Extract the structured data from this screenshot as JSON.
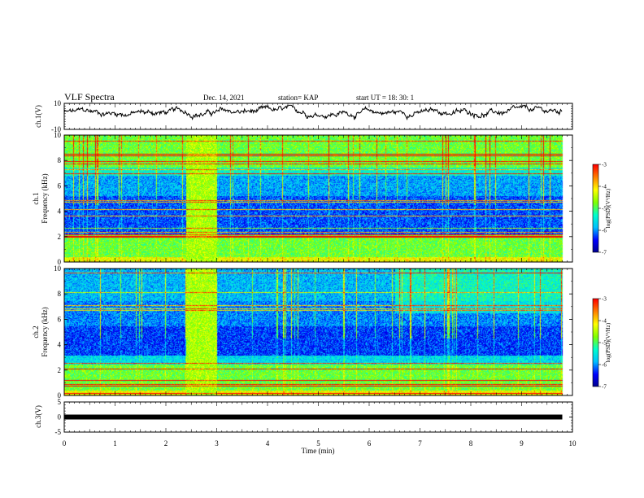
{
  "header": {
    "title": "VLF Spectra",
    "date": "Dec. 14, 2021",
    "station": "station= KAP",
    "start": "start  UT =   18: 30: 1"
  },
  "colors": {
    "trace": "#000000",
    "colormap": [
      "#00008b",
      "#0000ff",
      "#00bfff",
      "#00ffcc",
      "#7fff00",
      "#ffff00",
      "#ff8000",
      "#ff0000"
    ]
  },
  "chart_data": [
    {
      "type": "line",
      "name": "ch1-waveform",
      "ylabel": "ch.1(V)",
      "ylim": [
        -10,
        10
      ],
      "yticks": [
        "10",
        "-10"
      ],
      "x_range": [
        0,
        9.8
      ],
      "y_mean": 3,
      "y_spread": 4,
      "grid": false
    },
    {
      "type": "heatmap",
      "name": "ch1-spectrogram",
      "ylabel_line1": "ch.1",
      "ylabel_line2": "Frequency (kHz)",
      "ylim": [
        0,
        10
      ],
      "yticks": [
        "0",
        "2",
        "4",
        "6",
        "8",
        "10"
      ],
      "x_range": [
        0,
        9.8
      ],
      "burst_interval": [
        2.4,
        3.0
      ],
      "colorbar": {
        "label": "log(PSD)(V²/Hz)",
        "ticks": [
          "-3",
          "-4",
          "-5",
          "-6",
          "-7"
        ],
        "range": [
          -7,
          -3
        ]
      }
    },
    {
      "type": "heatmap",
      "name": "ch2-spectrogram",
      "ylabel_line1": "ch.2",
      "ylabel_line2": "Frequency (kHz)",
      "ylim": [
        0,
        10
      ],
      "yticks": [
        "0",
        "2",
        "4",
        "6",
        "8",
        "10"
      ],
      "x_range": [
        0,
        9.8
      ],
      "burst_interval": [
        2.4,
        3.0
      ],
      "colorbar": {
        "label": "log(PSD)(V²/Hz)",
        "ticks": [
          "-3",
          "-4",
          "-5",
          "-6",
          "-7"
        ],
        "range": [
          -7,
          -3
        ]
      }
    },
    {
      "type": "line",
      "name": "ch3-waveform",
      "ylabel": "ch.3(V)",
      "ylim": [
        -5,
        5
      ],
      "yticks": [
        "5",
        "0",
        "-5"
      ],
      "x_range": [
        0,
        9.8
      ],
      "y_value": 0,
      "grid": false
    }
  ],
  "xaxis": {
    "label": "Time (min)",
    "range": [
      0,
      10
    ],
    "ticks": [
      "0",
      "1",
      "2",
      "3",
      "4",
      "5",
      "6",
      "7",
      "8",
      "9",
      "10"
    ]
  }
}
